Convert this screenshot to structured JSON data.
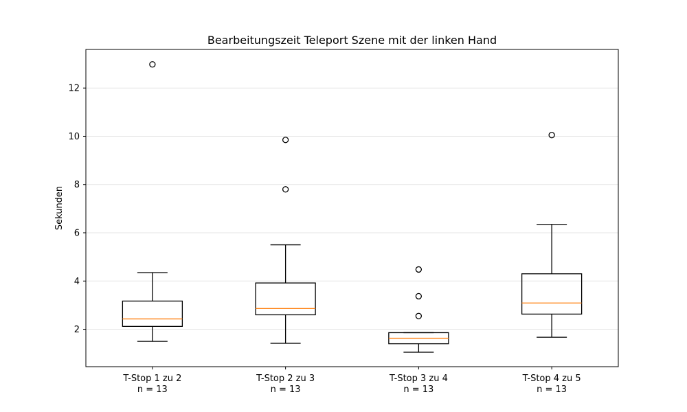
{
  "chart_data": {
    "type": "box",
    "title": "Bearbeitungszeit Teleport Szene mit der linken Hand",
    "xlabel": "",
    "ylabel": "Sekunden",
    "ylim": [
      0.45,
      13.6
    ],
    "yticks": [
      2,
      4,
      6,
      8,
      10,
      12
    ],
    "grid": "horizontal",
    "colors": {
      "box": "#000000",
      "median": "#ff7f0e",
      "grid": "#e6e6e6"
    },
    "categories": [
      {
        "label": "T-Stop 1 zu 2",
        "n_label": "n = 13"
      },
      {
        "label": "T-Stop 2 zu 3",
        "n_label": "n = 13"
      },
      {
        "label": "T-Stop 3 zu 4",
        "n_label": "n = 13"
      },
      {
        "label": "T-Stop 4 zu 5",
        "n_label": "n = 13"
      }
    ],
    "boxes": [
      {
        "whisker_low": 1.5,
        "q1": 2.12,
        "median": 2.43,
        "q3": 3.17,
        "whisker_high": 4.35,
        "outliers": [
          12.98
        ]
      },
      {
        "whisker_low": 1.42,
        "q1": 2.6,
        "median": 2.86,
        "q3": 3.92,
        "whisker_high": 5.5,
        "outliers": [
          7.8,
          9.85
        ]
      },
      {
        "whisker_low": 1.05,
        "q1": 1.4,
        "median": 1.63,
        "q3": 1.86,
        "whisker_high": 1.86,
        "outliers": [
          2.55,
          3.37,
          4.48
        ]
      },
      {
        "whisker_low": 1.67,
        "q1": 2.63,
        "median": 3.09,
        "q3": 4.3,
        "whisker_high": 6.35,
        "outliers": [
          10.05
        ]
      }
    ]
  }
}
